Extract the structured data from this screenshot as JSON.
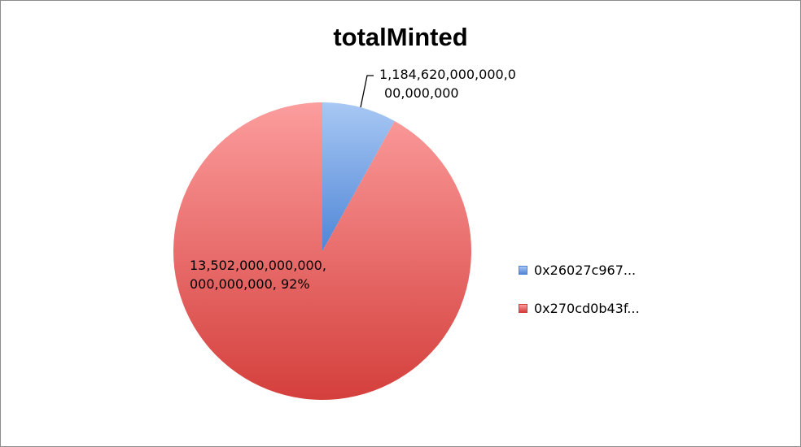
{
  "chart_data": {
    "type": "pie",
    "title": "totalMinted",
    "slices": [
      {
        "label": "0x26027c967...",
        "value": 1184620000000000000000,
        "data_label_lines": [
          "1,184,620,000,000,0",
          "00,000,000"
        ],
        "color_light": "#a8c8f4",
        "color_dark": "#4f86d6"
      },
      {
        "label": "0x270cd0b43f...",
        "value": 13502000000000000000000,
        "data_label_lines": [
          "13,502,000,000,000,",
          "000,000,000, 92%"
        ],
        "color_light": "#fc9d9d",
        "color_dark": "#d43f3c"
      }
    ],
    "legend_position": "right"
  }
}
